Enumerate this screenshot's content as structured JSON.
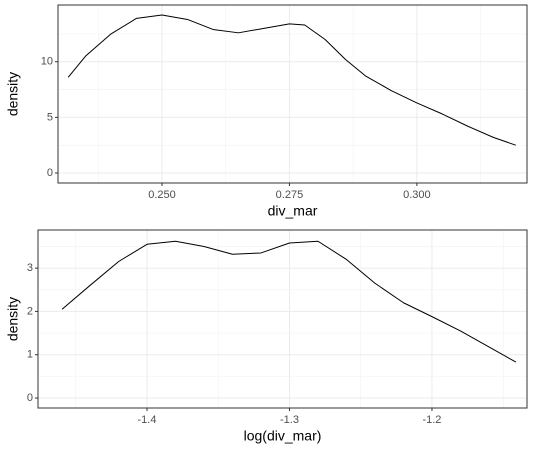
{
  "chart_data": [
    {
      "type": "line",
      "x_label": "div_mar",
      "y_label": "density",
      "x": [
        0.2316,
        0.235,
        0.24,
        0.245,
        0.25,
        0.255,
        0.26,
        0.265,
        0.27,
        0.275,
        0.278,
        0.282,
        0.286,
        0.29,
        0.295,
        0.3,
        0.305,
        0.31,
        0.315,
        0.3194
      ],
      "values": [
        8.6,
        10.5,
        12.5,
        13.9,
        14.2,
        13.8,
        12.9,
        12.6,
        13.0,
        13.4,
        13.3,
        12.0,
        10.2,
        8.7,
        7.4,
        6.3,
        5.3,
        4.2,
        3.2,
        2.5
      ],
      "color": "#000000",
      "xlim": [
        0.2296,
        0.3216
      ],
      "xticks": [
        {
          "value": 0.25,
          "label": "0.250"
        },
        {
          "value": 0.275,
          "label": "0.275"
        },
        {
          "value": 0.3,
          "label": "0.300"
        }
      ],
      "ylim": [
        -0.9,
        15.1
      ],
      "yticks": [
        0,
        5,
        10
      ],
      "grid": true
    },
    {
      "type": "line",
      "x_label": "log(div_mar)",
      "y_label": "density",
      "x": [
        -1.4596,
        -1.44,
        -1.42,
        -1.4,
        -1.38,
        -1.36,
        -1.34,
        -1.32,
        -1.3,
        -1.28,
        -1.26,
        -1.24,
        -1.22,
        -1.2,
        -1.18,
        -1.16,
        -1.1411
      ],
      "values": [
        2.05,
        2.6,
        3.15,
        3.55,
        3.62,
        3.5,
        3.32,
        3.35,
        3.58,
        3.62,
        3.2,
        2.65,
        2.2,
        1.88,
        1.55,
        1.18,
        0.83
      ],
      "color": "#000000",
      "xlim": [
        -1.4765,
        -1.1333
      ],
      "xticks": [
        -1.4,
        -1.3,
        -1.2
      ],
      "ylim": [
        -0.23,
        3.88
      ],
      "yticks": [
        0,
        1,
        2,
        3
      ],
      "grid": true
    }
  ]
}
